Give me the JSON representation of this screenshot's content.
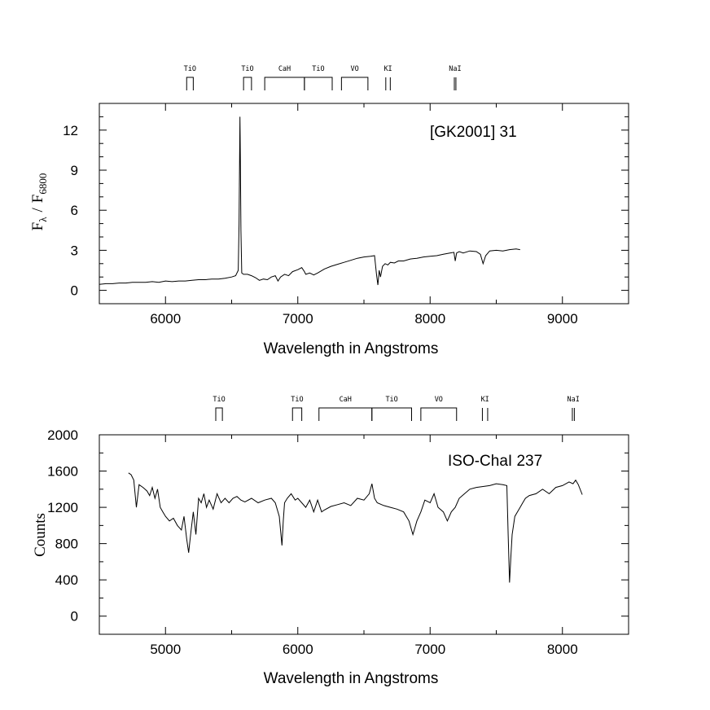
{
  "chart_data": [
    {
      "type": "line",
      "annotation": "[GK2001] 31",
      "xlabel": "Wavelength in Angstroms",
      "ylabel": "F",
      "ylabel_lambda": "λ",
      "ylabel_slash": "/",
      "ylabel_F": "F",
      "ylabel_sub": "6800",
      "xlim": [
        5500,
        9500
      ],
      "ylim": [
        -1,
        14
      ],
      "xticks": [
        6000,
        7000,
        8000,
        9000
      ],
      "yticks": [
        0,
        3,
        6,
        9,
        12
      ],
      "x_minor_step": 500,
      "y_minor_step": 1,
      "bands": [
        {
          "label": "TiO",
          "kind": "bracket",
          "x": [
            6160,
            6210
          ]
        },
        {
          "label": "TiO",
          "kind": "bracket",
          "x": [
            6590,
            6650
          ]
        },
        {
          "label": "CaH",
          "kind": "bracket",
          "x": [
            6750,
            7050
          ]
        },
        {
          "label": "TiO",
          "kind": "bracket",
          "x": [
            7050,
            7260
          ]
        },
        {
          "label": "VO",
          "kind": "bracket",
          "x": [
            7330,
            7530
          ]
        },
        {
          "label": "KI",
          "kind": "lines",
          "x": [
            7665,
            7699
          ]
        },
        {
          "label": "NaI",
          "kind": "lines",
          "x": [
            8183,
            8195
          ]
        }
      ],
      "series": [
        {
          "x": [
            5500,
            5550,
            5600,
            5650,
            5700,
            5750,
            5800,
            5850,
            5900,
            5950,
            6000,
            6050,
            6100,
            6150,
            6200,
            6250,
            6300,
            6350,
            6400,
            6450,
            6500,
            6530,
            6550,
            6556,
            6560,
            6563,
            6566,
            6570,
            6576,
            6590,
            6620,
            6650,
            6680,
            6710,
            6740,
            6770,
            6800,
            6830,
            6850,
            6870,
            6900,
            6930,
            6960,
            7000,
            7030,
            7050,
            7060,
            7090,
            7120,
            7150,
            7200,
            7250,
            7300,
            7350,
            7400,
            7450,
            7500,
            7550,
            7580,
            7595,
            7605,
            7615,
            7625,
            7640,
            7660,
            7680,
            7700,
            7730,
            7760,
            7800,
            7850,
            7900,
            7950,
            8000,
            8050,
            8100,
            8150,
            8180,
            8190,
            8200,
            8220,
            8250,
            8300,
            8350,
            8380,
            8400,
            8420,
            8450,
            8500,
            8550,
            8600,
            8650,
            8680
          ],
          "y": [
            0.45,
            0.5,
            0.5,
            0.55,
            0.55,
            0.6,
            0.6,
            0.6,
            0.65,
            0.6,
            0.7,
            0.65,
            0.7,
            0.7,
            0.75,
            0.8,
            0.8,
            0.85,
            0.85,
            0.9,
            1.0,
            1.1,
            1.5,
            5.0,
            10.0,
            13.0,
            10.0,
            4.5,
            1.3,
            1.2,
            1.2,
            1.1,
            0.95,
            0.75,
            0.85,
            0.8,
            1.0,
            1.1,
            0.7,
            1.0,
            1.2,
            1.1,
            1.4,
            1.55,
            1.7,
            1.4,
            1.2,
            1.3,
            1.15,
            1.3,
            1.6,
            1.8,
            1.95,
            2.1,
            2.25,
            2.4,
            2.5,
            2.55,
            2.6,
            1.2,
            0.4,
            1.5,
            1.0,
            1.8,
            2.0,
            1.9,
            2.1,
            2.05,
            2.2,
            2.2,
            2.35,
            2.4,
            2.5,
            2.55,
            2.6,
            2.7,
            2.8,
            2.85,
            2.2,
            2.8,
            2.9,
            2.8,
            2.95,
            2.9,
            2.7,
            2.0,
            2.6,
            2.95,
            3.0,
            2.95,
            3.05,
            3.1,
            3.05
          ]
        }
      ]
    },
    {
      "type": "line",
      "annotation": "ISO-ChaI 237",
      "xlabel": "Wavelength in Angstroms",
      "ylabel": "Counts",
      "xlim": [
        4500,
        8500
      ],
      "ylim": [
        -200,
        2000
      ],
      "xticks": [
        5000,
        6000,
        7000,
        8000
      ],
      "yticks": [
        0,
        400,
        800,
        1200,
        1600,
        2000
      ],
      "x_minor_step": 500,
      "y_minor_step": 200,
      "bands": [
        {
          "label": "TiO",
          "kind": "bracket",
          "x": [
            5380,
            5430
          ]
        },
        {
          "label": "TiO",
          "kind": "bracket",
          "x": [
            5960,
            6030
          ]
        },
        {
          "label": "CaH",
          "kind": "bracket",
          "x": [
            6160,
            6560
          ]
        },
        {
          "label": "TiO",
          "kind": "bracket",
          "x": [
            6560,
            6860
          ]
        },
        {
          "label": "VO",
          "kind": "bracket",
          "x": [
            6930,
            7200
          ]
        },
        {
          "label": "KI",
          "kind": "lines",
          "x": [
            7395,
            7435
          ]
        },
        {
          "label": "NaI",
          "kind": "lines",
          "x": [
            8075,
            8090
          ]
        }
      ],
      "series": [
        {
          "x": [
            4720,
            4740,
            4760,
            4780,
            4800,
            4830,
            4860,
            4880,
            4900,
            4920,
            4940,
            4960,
            4980,
            5000,
            5030,
            5060,
            5090,
            5120,
            5140,
            5160,
            5175,
            5190,
            5210,
            5230,
            5250,
            5270,
            5290,
            5310,
            5330,
            5360,
            5390,
            5420,
            5450,
            5480,
            5510,
            5540,
            5570,
            5600,
            5650,
            5700,
            5750,
            5800,
            5830,
            5860,
            5880,
            5890,
            5900,
            5920,
            5950,
            5980,
            6000,
            6030,
            6060,
            6090,
            6120,
            6150,
            6180,
            6200,
            6250,
            6300,
            6350,
            6400,
            6450,
            6500,
            6540,
            6560,
            6580,
            6600,
            6650,
            6700,
            6750,
            6800,
            6840,
            6870,
            6880,
            6900,
            6930,
            6960,
            7000,
            7030,
            7060,
            7100,
            7130,
            7160,
            7190,
            7220,
            7260,
            7300,
            7350,
            7400,
            7450,
            7500,
            7550,
            7580,
            7590,
            7600,
            7610,
            7620,
            7640,
            7660,
            7680,
            7700,
            7720,
            7750,
            7800,
            7850,
            7900,
            7950,
            8000,
            8050,
            8080,
            8100,
            8120,
            8150
          ],
          "y": [
            1580,
            1560,
            1500,
            1200,
            1450,
            1420,
            1380,
            1330,
            1420,
            1300,
            1400,
            1200,
            1150,
            1100,
            1050,
            1080,
            1000,
            950,
            1100,
            850,
            700,
            900,
            1150,
            900,
            1300,
            1250,
            1350,
            1200,
            1280,
            1180,
            1350,
            1250,
            1300,
            1250,
            1300,
            1320,
            1280,
            1260,
            1300,
            1250,
            1280,
            1300,
            1250,
            1100,
            780,
            1050,
            1250,
            1300,
            1350,
            1280,
            1300,
            1250,
            1200,
            1280,
            1150,
            1280,
            1150,
            1170,
            1210,
            1230,
            1250,
            1220,
            1300,
            1280,
            1350,
            1460,
            1300,
            1250,
            1220,
            1200,
            1180,
            1150,
            1050,
            900,
            950,
            1050,
            1150,
            1280,
            1250,
            1350,
            1200,
            1150,
            1050,
            1150,
            1200,
            1300,
            1350,
            1400,
            1420,
            1430,
            1440,
            1460,
            1450,
            1440,
            900,
            370,
            650,
            900,
            1100,
            1150,
            1200,
            1250,
            1300,
            1330,
            1350,
            1400,
            1350,
            1420,
            1440,
            1480,
            1460,
            1500,
            1450,
            1340
          ]
        }
      ]
    }
  ]
}
